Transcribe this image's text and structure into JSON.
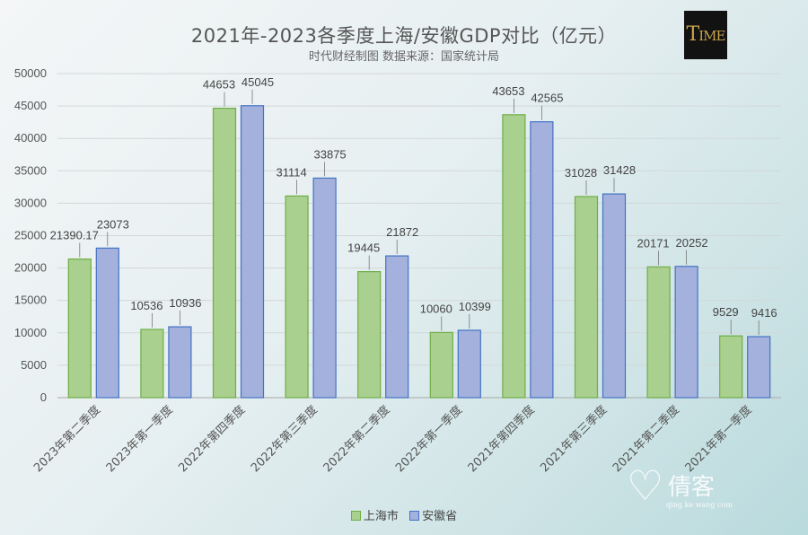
{
  "chart_data": {
    "type": "bar",
    "title": "2021年-2023各季度上海/安徽GDP对比（亿元）",
    "subtitle": "时代财经制图  数据来源：国家统计局",
    "categories": [
      "2023年第二季度",
      "2023年第一季度",
      "2022年第四季度",
      "2022年第三季度",
      "2022年第二季度",
      "2022年第一季度",
      "2021年第四季度",
      "2021年第三季度",
      "2021年第二季度",
      "2021年第一季度"
    ],
    "series": [
      {
        "name": "上海市",
        "values": [
          21390.17,
          10536,
          44653,
          31114,
          19445,
          10060,
          43653,
          31028,
          20171,
          9529
        ],
        "labels": [
          "21390.17",
          "10536",
          "44653",
          "31114",
          "19445",
          "10060",
          "43653",
          "31028",
          "20171",
          "9529"
        ],
        "color": "#a9d08e",
        "stroke": "#70ad47"
      },
      {
        "name": "安徽省",
        "values": [
          23073,
          10936,
          45045,
          33875,
          21872,
          10399,
          42565,
          31428,
          20252,
          9416
        ],
        "labels": [
          "23073",
          "10936",
          "45045",
          "33875",
          "21872",
          "10399",
          "42565",
          "31428",
          "20252",
          "9416"
        ],
        "color": "#a4b1dd",
        "stroke": "#4472c4"
      }
    ],
    "yticks": [
      "0",
      "5000",
      "10000",
      "15000",
      "20000",
      "25000",
      "30000",
      "35000",
      "40000",
      "45000",
      "50000"
    ],
    "ylim": [
      0,
      50000
    ],
    "grid": true,
    "legend_position": "bottom"
  },
  "logo": {
    "big": "T",
    "rest": "IME"
  },
  "watermark": {
    "text": "倩客",
    "sub": "qing ke wang com"
  }
}
